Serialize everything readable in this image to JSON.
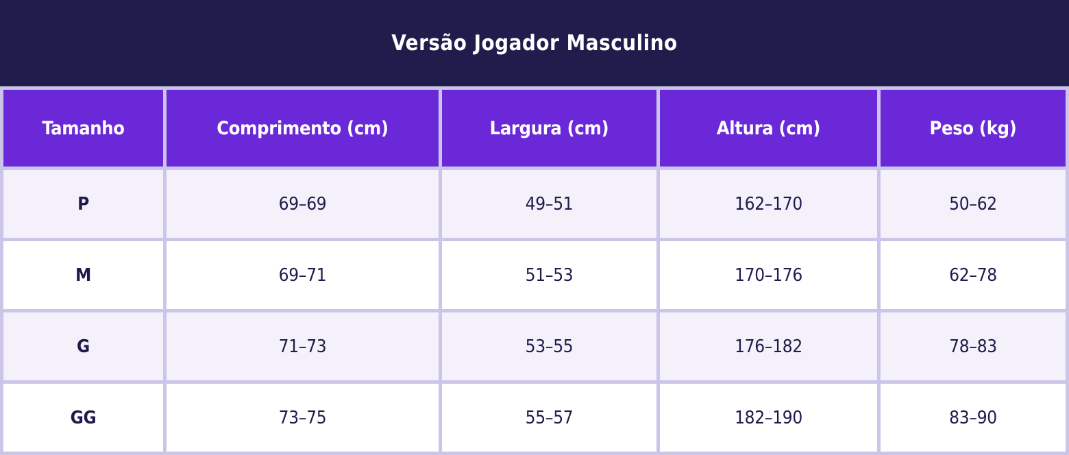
{
  "title": "Versão Jogador Masculino",
  "chart_data": {
    "type": "table",
    "title": "Versão Jogador Masculino",
    "columns": [
      "Tamanho",
      "Comprimento (cm)",
      "Largura (cm)",
      "Altura (cm)",
      "Peso (kg)"
    ],
    "rows": [
      [
        "P",
        "69–69",
        "49–51",
        "162–170",
        "50–62"
      ],
      [
        "M",
        "69–71",
        "51–53",
        "170–176",
        "62–78"
      ],
      [
        "G",
        "71–73",
        "53–55",
        "176–182",
        "78–83"
      ],
      [
        "GG",
        "73–75",
        "55–57",
        "182–190",
        "83–90"
      ]
    ],
    "layout_hints": {
      "header_position": "top",
      "row_striping": "odd rows lavender, even rows white",
      "grid": "on"
    }
  },
  "colors": {
    "title_bg": "#201d4d",
    "title_text": "#ffffff",
    "header_bg": "#6b28d9",
    "header_text": "#ffffff",
    "row_odd_bg": "#f4f1fb",
    "row_even_bg": "#ffffff",
    "cell_text": "#1e1b4b",
    "border": "#cbc5ea"
  }
}
